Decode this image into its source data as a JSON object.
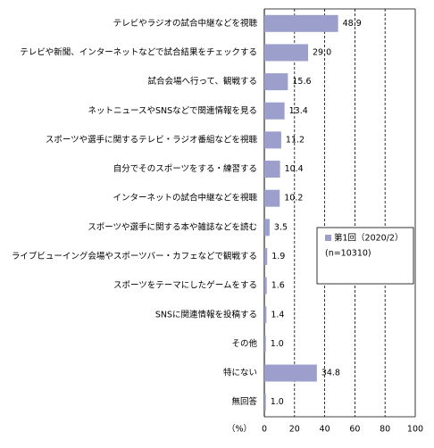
{
  "chart_data": {
    "type": "barh",
    "categories": [
      "テレビやラジオの試合中継などを視聴",
      "テレビや新聞、インターネットなどで試合結果をチェックする",
      "試合会場へ行って、観戦する",
      "ネットニュースやSNSなどで関連情報を見る",
      "スポーツや選手に関するテレビ・ラジオ番組などを視聴",
      "自分でそのスポーツをする・練習する",
      "インターネットの試合中継などを視聴",
      "スポーツや選手に関する本や雑誌などを読む",
      "ライブビューイング会場やスポーツバー・カフェなどで観戦する",
      "スポーツをテーマにしたゲームをする",
      "SNSに関連情報を投稿する",
      "その他",
      "特にない",
      "無回答"
    ],
    "series": [
      {
        "name": "第1回（2020/2）",
        "color": "#9c9fcc",
        "values": [
          48.9,
          29.0,
          15.6,
          13.4,
          11.2,
          10.4,
          10.2,
          3.5,
          1.9,
          1.6,
          1.4,
          1.0,
          34.8,
          1.0
        ],
        "value_labels": [
          "48.9",
          "29.0",
          "15.6",
          "13.4",
          "11.2",
          "10.4",
          "10.2",
          "3.5",
          "1.9",
          "1.6",
          "1.4",
          "1.0",
          "34.8",
          "1.0"
        ]
      }
    ],
    "legend_note": "(n=10310)",
    "xlabel": "（%）",
    "xlim": [
      0,
      100
    ],
    "xticks": [
      0,
      20,
      40,
      60,
      80,
      100
    ],
    "grid": true
  }
}
